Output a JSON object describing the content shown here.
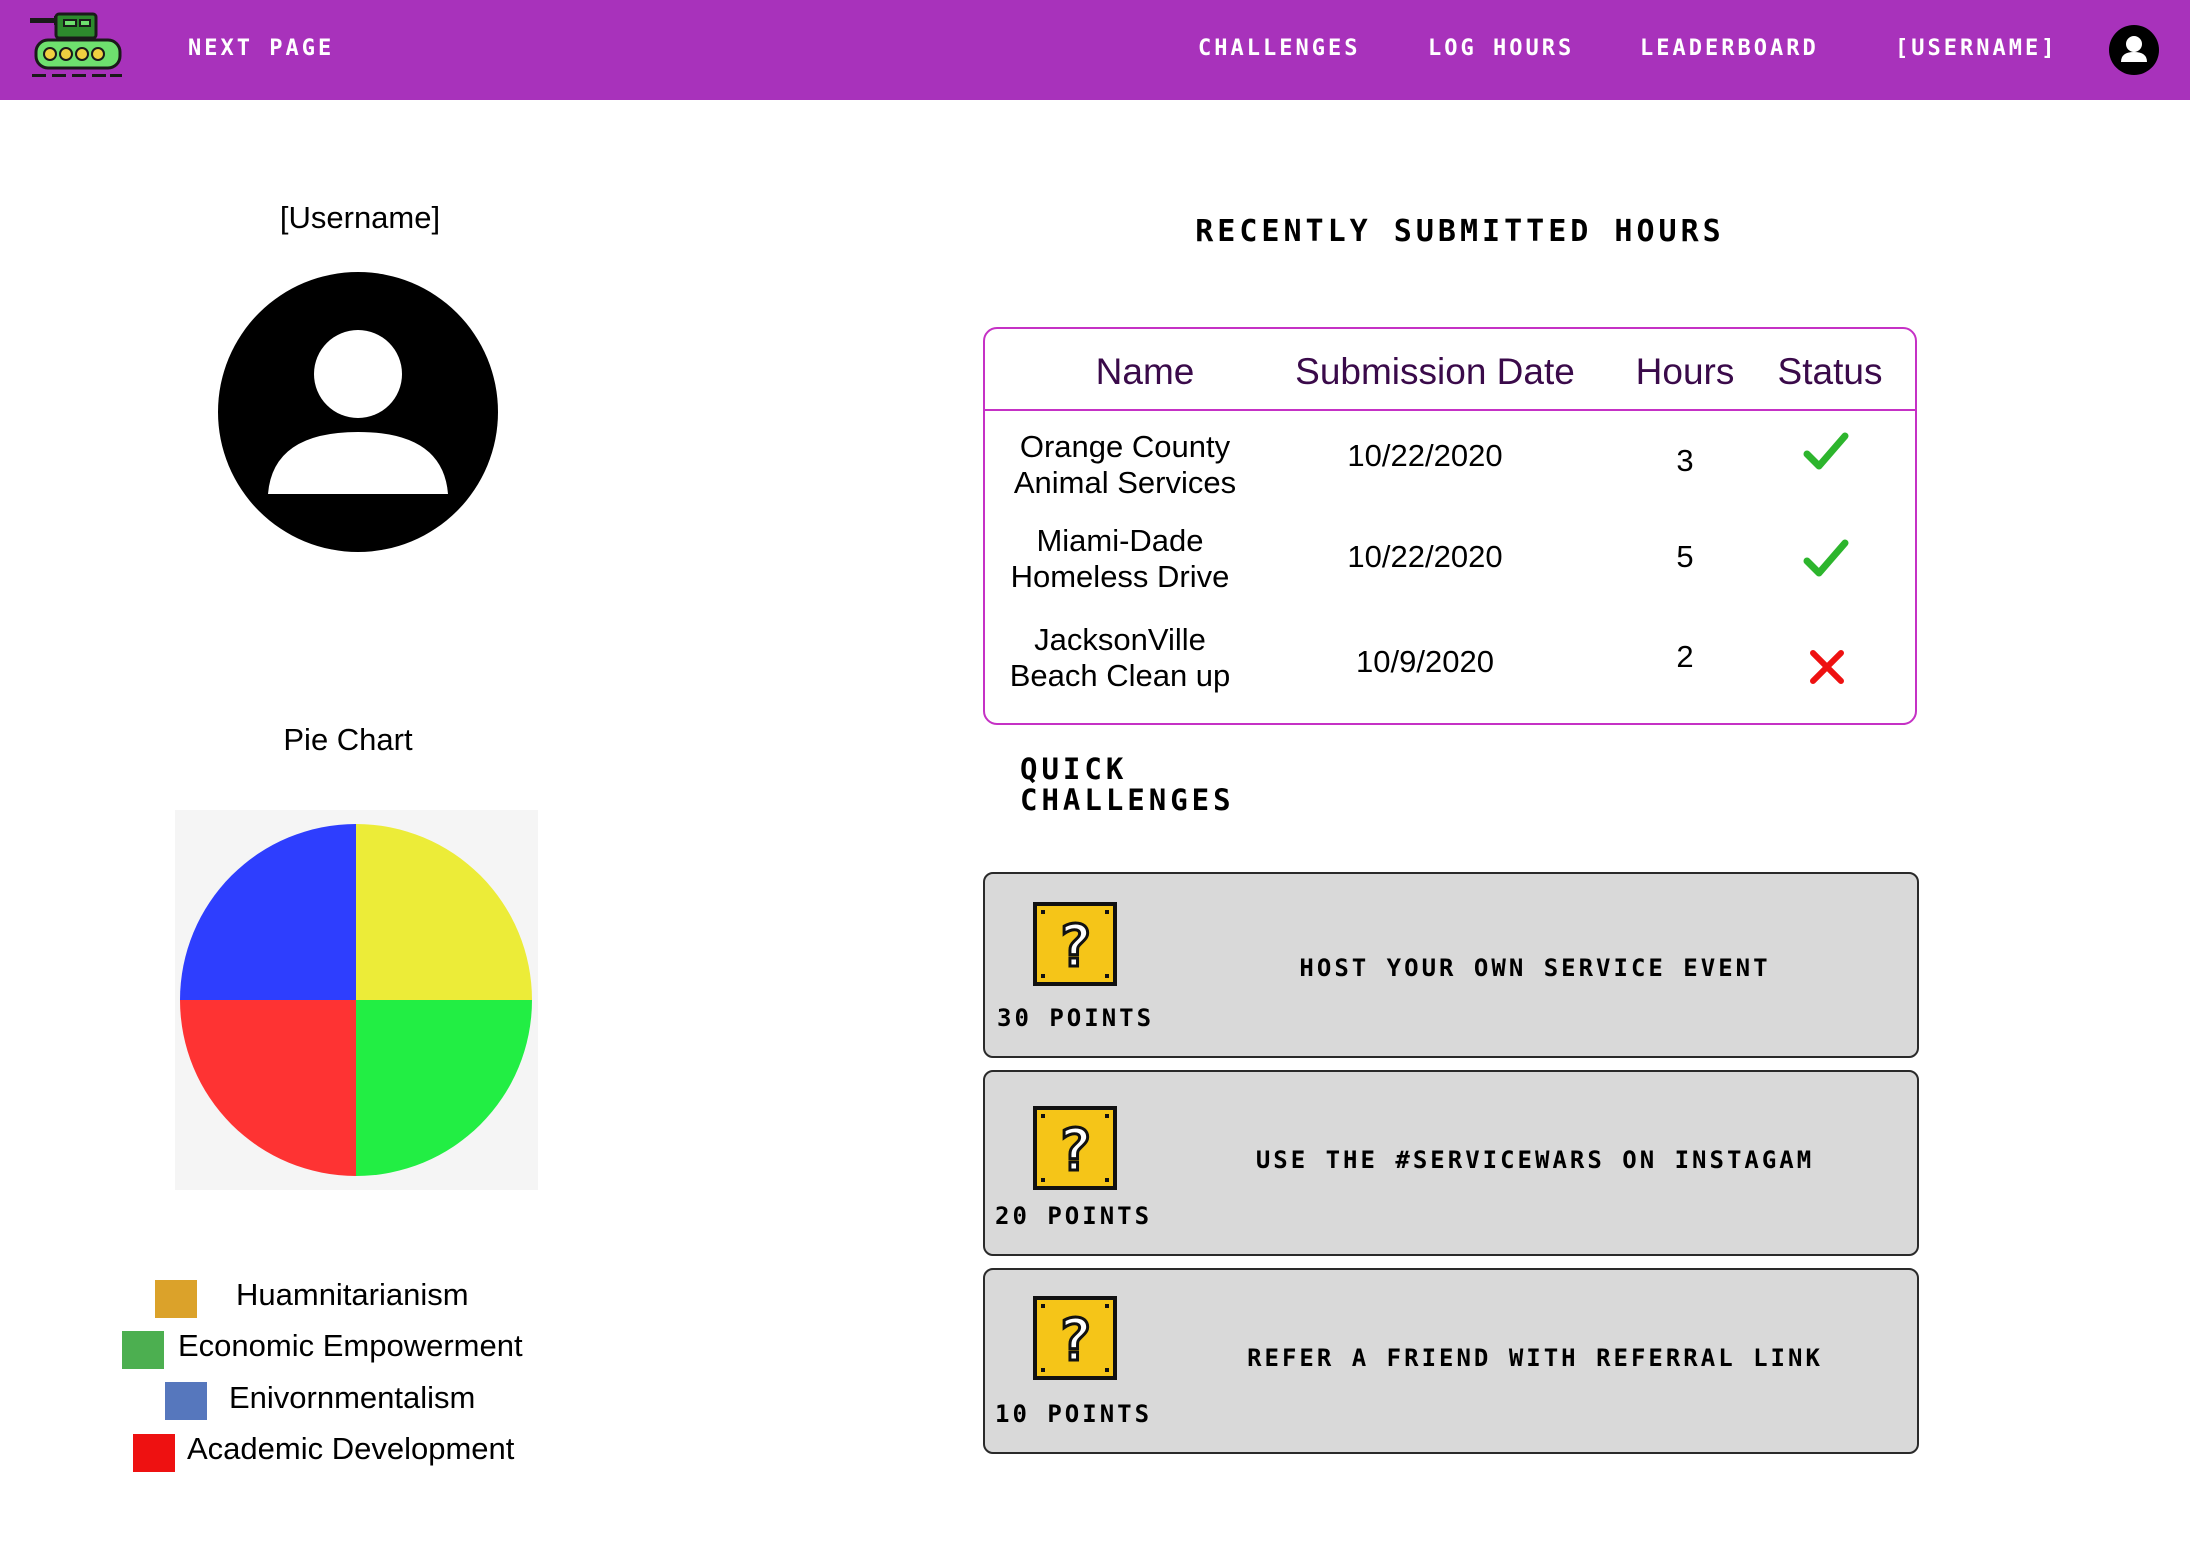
{
  "nav": {
    "next_page": "NEXT PAGE",
    "challenges": "CHALLENGES",
    "log_hours": "LOG HOURS",
    "leaderboard": "LEADERBOARD",
    "username": "[USERNAME]",
    "background_color": "#a832bb"
  },
  "profile": {
    "username": "[Username]",
    "pie_chart_title": "Pie Chart"
  },
  "chart_data": {
    "type": "pie",
    "title": "Pie Chart",
    "labels": [
      "Humanitarianism-yellow",
      "Economic-green",
      "Academic-red",
      "Environmental-blue"
    ],
    "values": [
      25,
      25,
      25,
      25
    ],
    "colors": [
      "#ecec38",
      "#22ee44",
      "#fe3333",
      "#2e3efe"
    ]
  },
  "legend": [
    {
      "label": "Huamnitarianism",
      "color": "#dba22a"
    },
    {
      "label": "Economic Empowerment",
      "color": "#4caf50"
    },
    {
      "label": "Enivornmentalism",
      "color": "#5677bd"
    },
    {
      "label": "Academic Development",
      "color": "#ee1111"
    }
  ],
  "recent": {
    "title": "RECENTLY SUBMITTED HOURS",
    "columns": [
      "Name",
      "Submission Date",
      "Hours",
      "Status"
    ],
    "rows": [
      {
        "name_line1": "Orange County",
        "name_line2": "Animal Services",
        "date": "10/22/2020",
        "hours": "3",
        "status": "approved"
      },
      {
        "name_line1": "Miami-Dade",
        "name_line2": "Homeless Drive",
        "date": "10/22/2020",
        "hours": "5",
        "status": "approved"
      },
      {
        "name_line1": "JacksonVille",
        "name_line2": "Beach Clean up",
        "date": "10/9/2020",
        "hours": "2",
        "status": "rejected"
      }
    ]
  },
  "quick": {
    "title_line1": "QUICK",
    "title_line2": "CHALLENGES",
    "cards": [
      {
        "points": "30 POINTS",
        "text": "HOST YOUR OWN SERVICE EVENT",
        "icon": "question-block-icon"
      },
      {
        "points": "20 POINTS",
        "text": "USE THE #SERVICEWARS ON INSTAGAM",
        "icon": "question-block-icon"
      },
      {
        "points": "10 POINTS",
        "text": "REFER A FRIEND WITH REFERRAL LINK",
        "icon": "question-block-icon"
      }
    ]
  }
}
